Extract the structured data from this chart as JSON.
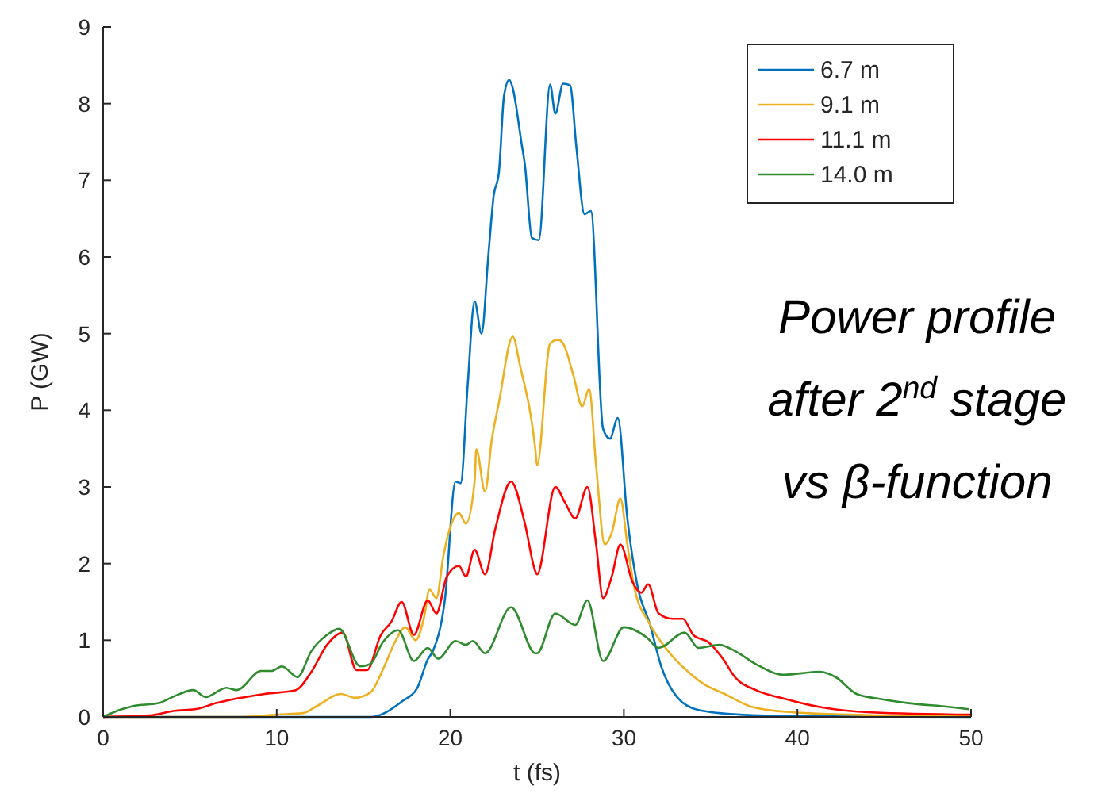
{
  "chart_data": {
    "type": "line",
    "xlabel": "t (fs)",
    "ylabel": "P (GW)",
    "xlim": [
      0,
      50
    ],
    "ylim": [
      0,
      9
    ],
    "xticks": [
      0,
      10,
      20,
      30,
      40,
      50
    ],
    "yticks": [
      0,
      1,
      2,
      3,
      4,
      5,
      6,
      7,
      8,
      9
    ],
    "grid": false,
    "legend": "top right",
    "marker": "none",
    "line_style": "solid",
    "annotations": [
      "Power profile\nafter 2$^{nd}$ stage\nvs β-function"
    ],
    "series": [
      {
        "name": "6.7 m",
        "color": "#0072bd",
        "x": [
          0,
          10,
          15.4,
          17.2,
          18.1,
          18.7,
          19.0,
          19.7,
          20.3,
          20.6,
          21.0,
          21.4,
          21.8,
          22.2,
          22.5,
          22.8,
          23.1,
          23.4,
          23.6,
          24.1,
          24.3,
          24.7,
          25.1,
          25.75,
          26.05,
          26.5,
          26.9,
          27.27,
          27.73,
          28.1,
          28.8,
          29.2,
          29.65,
          30.2,
          30.8,
          31.5,
          32.15,
          33.06,
          34.3,
          36.7,
          40,
          50
        ],
        "values": [
          0,
          0,
          0,
          0.2,
          0.38,
          0.75,
          0.86,
          1.55,
          3.07,
          3.05,
          4.32,
          5.42,
          5.0,
          6.04,
          6.8,
          7.1,
          8.11,
          8.31,
          8.2,
          7.49,
          7.2,
          6.25,
          6.22,
          8.25,
          7.87,
          8.26,
          8.24,
          7.42,
          6.56,
          6.6,
          3.76,
          3.63,
          3.9,
          2.59,
          1.69,
          1.21,
          0.66,
          0.26,
          0.09,
          0.03,
          0.01,
          0
        ]
      },
      {
        "name": "9.1 m",
        "color": "#edb120",
        "x": [
          0,
          8,
          10,
          11.5,
          12.3,
          13.7,
          14.5,
          15.4,
          16.2,
          16.8,
          17.4,
          18.0,
          18.5,
          18.8,
          19.2,
          19.6,
          20.2,
          20.5,
          20.9,
          21.4,
          21.5,
          22.0,
          22.4,
          22.8,
          23.6,
          24.0,
          24.9,
          25.0,
          25.75,
          26.2,
          26.5,
          27.1,
          27.6,
          28.0,
          28.4,
          28.9,
          29.3,
          29.8,
          30.2,
          30.6,
          31.5,
          32.4,
          33.7,
          34.6,
          35.8,
          37.4,
          39.8,
          45,
          50
        ],
        "values": [
          0,
          0,
          0.03,
          0.05,
          0.14,
          0.3,
          0.25,
          0.32,
          0.66,
          0.97,
          1.17,
          1.0,
          1.31,
          1.66,
          1.55,
          2.1,
          2.59,
          2.66,
          2.52,
          3.07,
          3.49,
          2.94,
          3.63,
          4.1,
          4.96,
          4.6,
          3.49,
          3.28,
          4.87,
          4.92,
          4.87,
          4.45,
          4.05,
          4.28,
          3.28,
          2.25,
          2.4,
          2.85,
          2.25,
          1.69,
          1.21,
          0.9,
          0.59,
          0.43,
          0.3,
          0.13,
          0.06,
          0.02,
          0.01
        ]
      },
      {
        "name": "11.1 m",
        "color": "#ff0000",
        "x": [
          0,
          2.7,
          4.1,
          5.3,
          6.5,
          9.3,
          11.1,
          12.0,
          12.9,
          13.8,
          14.6,
          15.2,
          16.0,
          16.6,
          17.2,
          17.9,
          18.7,
          19.2,
          19.8,
          20.5,
          20.9,
          21.4,
          22.0,
          22.6,
          23.5,
          24.3,
          24.9,
          25.0,
          26.05,
          26.6,
          27.2,
          27.9,
          28.4,
          28.8,
          29.3,
          29.8,
          30.5,
          31.0,
          31.4,
          32.0,
          32.8,
          33.4,
          34.0,
          34.9,
          35.7,
          36.4,
          37.6,
          39.2,
          41.3,
          44.3,
          50
        ],
        "values": [
          0,
          0.02,
          0.08,
          0.1,
          0.18,
          0.3,
          0.35,
          0.59,
          0.94,
          1.1,
          0.61,
          0.61,
          1.07,
          1.24,
          1.5,
          1.07,
          1.52,
          1.35,
          1.83,
          1.97,
          1.83,
          2.18,
          1.86,
          2.46,
          3.07,
          2.52,
          1.9,
          1.86,
          3.0,
          2.8,
          2.59,
          3.0,
          2.25,
          1.55,
          1.83,
          2.25,
          1.76,
          1.62,
          1.73,
          1.35,
          1.28,
          1.28,
          1.07,
          0.97,
          0.76,
          0.52,
          0.35,
          0.24,
          0.13,
          0.06,
          0.03
        ]
      },
      {
        "name": "14.0 m",
        "color": "#2e8b2e",
        "x": [
          0,
          1.07,
          1.7,
          3.2,
          4.1,
          5.2,
          5.9,
          7.1,
          7.7,
          9.1,
          9.7,
          10.3,
          11.2,
          12.0,
          12.9,
          13.6,
          14.8,
          15.4,
          16.1,
          17.0,
          17.9,
          18.7,
          19.3,
          20.3,
          20.9,
          21.3,
          22.0,
          23.5,
          24.9,
          25.0,
          26.05,
          27.2,
          27.9,
          28.8,
          30.0,
          31.3,
          32.0,
          33.5,
          34.3,
          35.5,
          36.4,
          37.6,
          39.2,
          41.3,
          42.2,
          43.4,
          44.6,
          46.4,
          48.8,
          49.9
        ],
        "values": [
          0,
          0.1,
          0.14,
          0.18,
          0.27,
          0.35,
          0.26,
          0.38,
          0.35,
          0.6,
          0.6,
          0.66,
          0.52,
          0.86,
          1.07,
          1.15,
          0.66,
          0.69,
          0.97,
          1.13,
          0.73,
          0.9,
          0.76,
          0.99,
          0.94,
          0.99,
          0.83,
          1.43,
          0.83,
          0.83,
          1.35,
          1.2,
          1.52,
          0.73,
          1.17,
          1.04,
          0.9,
          1.1,
          0.9,
          0.94,
          0.86,
          0.69,
          0.55,
          0.59,
          0.52,
          0.3,
          0.24,
          0.18,
          0.13,
          0.1
        ]
      }
    ]
  }
}
